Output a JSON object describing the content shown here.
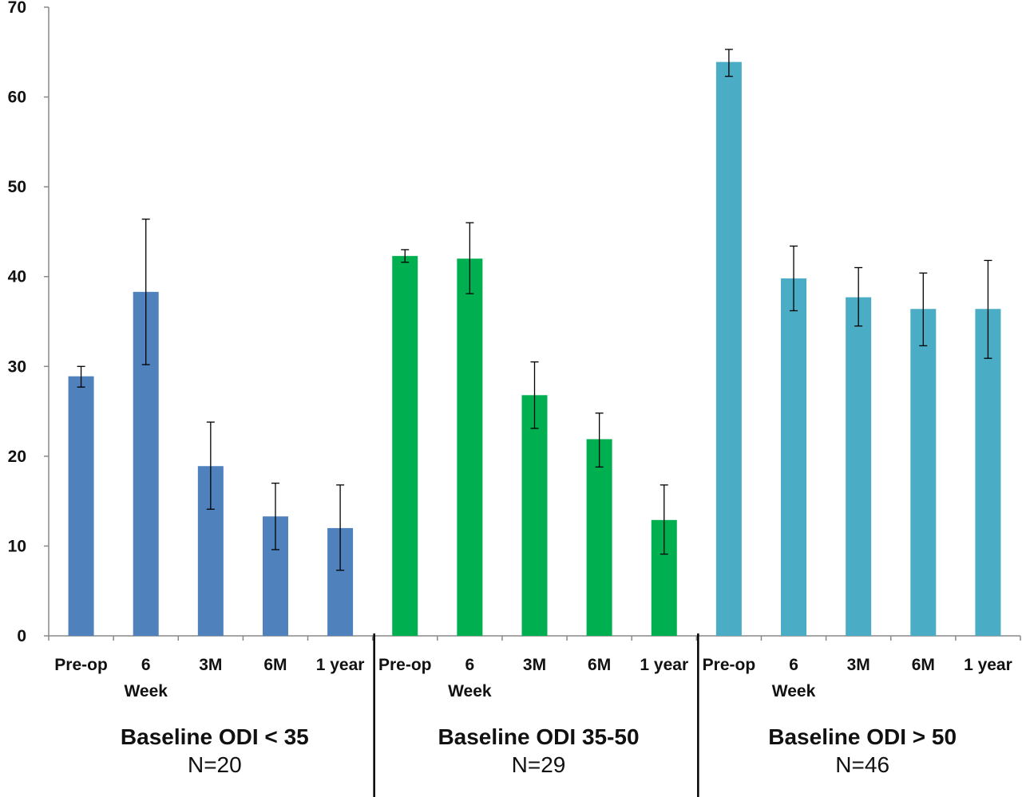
{
  "chart_data": {
    "type": "bar",
    "ylim": [
      0,
      70
    ],
    "yticks": [
      0,
      10,
      20,
      30,
      40,
      50,
      60,
      70
    ],
    "grid": false,
    "legend": "none",
    "groups": [
      {
        "title": "Baseline ODI < 35",
        "n_label": "N=20",
        "color": "#4f81bd",
        "categories": [
          [
            "Pre-op"
          ],
          [
            "6",
            "Week"
          ],
          [
            "3M"
          ],
          [
            "6M"
          ],
          [
            "1 year"
          ]
        ],
        "values": [
          28.9,
          38.3,
          18.9,
          13.3,
          12.0
        ],
        "err_low": [
          27.7,
          30.2,
          14.1,
          9.6,
          7.3
        ],
        "err_high": [
          30.0,
          46.4,
          23.8,
          17.0,
          16.8
        ]
      },
      {
        "title": "Baseline ODI  35-50",
        "n_label": "N=29",
        "color": "#00b050",
        "categories": [
          [
            "Pre-op"
          ],
          [
            "6",
            "Week"
          ],
          [
            "3M"
          ],
          [
            "6M"
          ],
          [
            "1 year"
          ]
        ],
        "values": [
          42.3,
          42.0,
          26.8,
          21.9,
          12.9
        ],
        "err_low": [
          41.6,
          38.1,
          23.1,
          18.8,
          9.1
        ],
        "err_high": [
          43.0,
          46.0,
          30.5,
          24.8,
          16.8
        ]
      },
      {
        "title": "Baseline ODI > 50",
        "n_label": "N=46",
        "color": "#4bacc6",
        "categories": [
          [
            "Pre-op"
          ],
          [
            "6",
            "Week"
          ],
          [
            "3M"
          ],
          [
            "6M"
          ],
          [
            "1 year"
          ]
        ],
        "values": [
          63.9,
          39.8,
          37.7,
          36.4,
          36.4
        ],
        "err_low": [
          62.3,
          36.2,
          34.5,
          32.3,
          30.9
        ],
        "err_high": [
          65.3,
          43.4,
          41.0,
          40.4,
          41.8
        ]
      }
    ]
  }
}
